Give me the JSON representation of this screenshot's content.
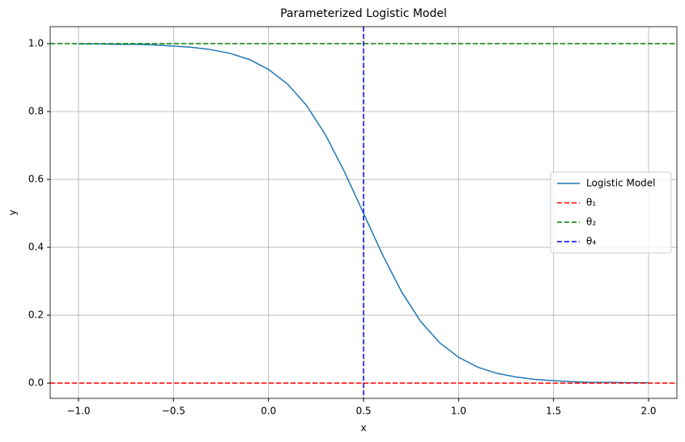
{
  "chart_data": {
    "type": "line",
    "title": "Parameterized Logistic Model",
    "x_label": "x",
    "y_label": "y",
    "x": [
      -1.0,
      -0.9,
      -0.8,
      -0.7,
      -0.6,
      -0.5,
      -0.4,
      -0.3,
      -0.2,
      -0.1,
      0.0,
      0.1,
      0.2,
      0.3,
      0.4,
      0.5,
      0.6,
      0.7,
      0.8,
      0.9,
      1.0,
      1.1,
      1.2,
      1.3,
      1.4,
      1.5,
      1.6,
      1.7,
      1.8,
      1.9,
      2.0
    ],
    "series": [
      {
        "name": "Logistic Model",
        "color": "#1f77b4",
        "values": [
          0.999,
          0.999,
          0.998,
          0.998,
          0.996,
          0.993,
          0.989,
          0.982,
          0.971,
          0.953,
          0.924,
          0.881,
          0.818,
          0.731,
          0.622,
          0.5,
          0.378,
          0.269,
          0.182,
          0.119,
          0.076,
          0.047,
          0.029,
          0.018,
          0.011,
          0.007,
          0.004,
          0.002,
          0.002,
          0.001,
          0.001
        ]
      }
    ],
    "reference_lines": [
      {
        "name": "θ₁",
        "color": "#ff0000",
        "axis": "y",
        "value": 0
      },
      {
        "name": "θ₂",
        "color": "#008000",
        "axis": "y",
        "value": 1
      },
      {
        "name": "θ₄",
        "color": "#0000ff",
        "axis": "x",
        "value": 0.5
      }
    ],
    "xlim": [
      -1.149,
      2.149
    ],
    "ylim": [
      -0.045,
      1.05
    ],
    "xticks": [
      {
        "value": -1.0,
        "label": "−1.0"
      },
      {
        "value": -0.5,
        "label": "−0.5"
      },
      {
        "value": 0.0,
        "label": "0.0"
      },
      {
        "value": 0.5,
        "label": "0.5"
      },
      {
        "value": 1.0,
        "label": "1.0"
      },
      {
        "value": 1.5,
        "label": "1.5"
      },
      {
        "value": 2.0,
        "label": "2.0"
      }
    ],
    "yticks": [
      {
        "value": 0.0,
        "label": "0.0"
      },
      {
        "value": 0.2,
        "label": "0.2"
      },
      {
        "value": 0.4,
        "label": "0.4"
      },
      {
        "value": 0.6,
        "label": "0.6"
      },
      {
        "value": 0.8,
        "label": "0.8"
      },
      {
        "value": 1.0,
        "label": "1.0"
      }
    ],
    "grid": true,
    "legend": "center right"
  }
}
